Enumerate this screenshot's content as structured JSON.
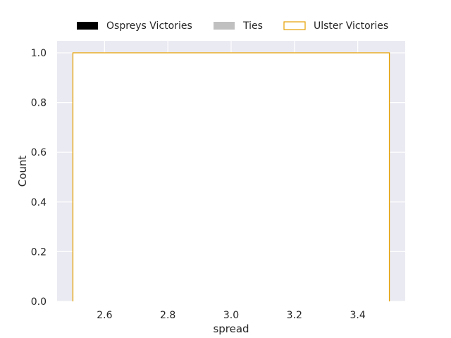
{
  "chart_data": {
    "type": "bar",
    "title": "",
    "xlabel": "spread",
    "ylabel": "Count",
    "xlim": [
      2.45,
      3.55
    ],
    "ylim": [
      0.0,
      1.0
    ],
    "xticks": [
      "2.6",
      "2.8",
      "3.0",
      "3.2",
      "3.4"
    ],
    "xtick_values": [
      2.6,
      2.8,
      3.0,
      3.2,
      3.4
    ],
    "yticks": [
      "0.0",
      "0.2",
      "0.4",
      "0.6",
      "0.8",
      "1.0"
    ],
    "ytick_values": [
      0.0,
      0.2,
      0.4,
      0.6,
      0.8,
      1.0
    ],
    "grid": true,
    "legend_position": "top-center",
    "series": [
      {
        "name": "Ospreys Victories",
        "style": "filled",
        "color": "#000000",
        "bins": []
      },
      {
        "name": "Ties",
        "style": "filled",
        "color": "#c0c0c0",
        "bins": []
      },
      {
        "name": "Ulster Victories",
        "style": "outline",
        "color": "#e69f00",
        "bins": [
          {
            "x0": 2.5,
            "x1": 3.5,
            "count": 1
          }
        ]
      }
    ]
  }
}
